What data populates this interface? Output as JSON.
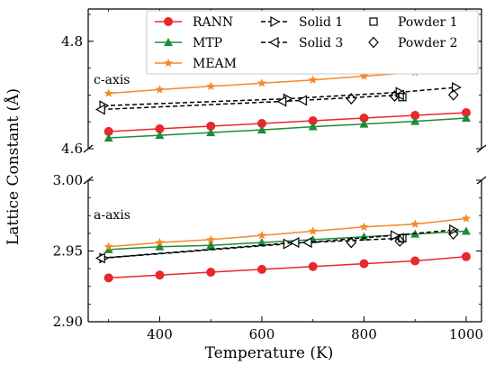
{
  "chart_data": {
    "type": "line",
    "xlabel": "Temperature (K)",
    "ylabel": "Lattice Constant (Å)",
    "xlim": [
      260,
      1030
    ],
    "x_ticks": [
      400,
      600,
      800,
      1000
    ],
    "legend_placement": "top",
    "legend_columns": 3,
    "panels": [
      {
        "id": "c-axis",
        "annotation": "c-axis",
        "ylim": [
          4.6,
          4.86
        ],
        "y_ticks": [
          4.6,
          4.8
        ],
        "y_tick_labels": [
          "4.6",
          "4.8"
        ],
        "series": [
          {
            "name": "RANN",
            "style": "line-circle",
            "color": "#e8282b",
            "x": [
              300,
              400,
              500,
              600,
              700,
              800,
              900,
              1000
            ],
            "y": [
              4.632,
              4.637,
              4.642,
              4.647,
              4.652,
              4.657,
              4.662,
              4.667
            ]
          },
          {
            "name": "MTP",
            "style": "line-triangle-up",
            "color": "#1e8b3a",
            "x": [
              300,
              400,
              500,
              600,
              700,
              800,
              900,
              1000
            ],
            "y": [
              4.62,
              4.625,
              4.63,
              4.635,
              4.641,
              4.646,
              4.651,
              4.657
            ]
          },
          {
            "name": "MEAM",
            "style": "line-star",
            "color": "#f5892a",
            "x": [
              300,
              400,
              500,
              600,
              700,
              800,
              900,
              1000
            ],
            "y": [
              4.703,
              4.71,
              4.716,
              4.722,
              4.728,
              4.735,
              4.742,
              4.75
            ]
          },
          {
            "name": "Solid 1",
            "style": "dashed-triangle-right",
            "color": "#000000",
            "x": [
              290,
              650,
              870,
              980
            ],
            "y": [
              4.68,
              4.693,
              4.705,
              4.714
            ]
          },
          {
            "name": "Solid 3",
            "style": "dashed-triangle-left",
            "color": "#000000",
            "x": [
              285,
              640,
              680,
              870
            ],
            "y": [
              4.673,
              4.688,
              4.69,
              4.7
            ]
          },
          {
            "name": "Powder 1",
            "style": "square",
            "color": "#000000",
            "x": [
              875
            ],
            "y": [
              4.696
            ]
          },
          {
            "name": "Powder 2",
            "style": "diamond",
            "color": "#000000",
            "x": [
              775,
              860,
              975
            ],
            "y": [
              4.693,
              4.698,
              4.7
            ]
          }
        ]
      },
      {
        "id": "a-axis",
        "annotation": "a-axis",
        "ylim": [
          2.9,
          3.0
        ],
        "y_ticks": [
          2.9,
          2.95,
          3.0
        ],
        "y_tick_labels": [
          "2.90",
          "2.95",
          "3.00"
        ],
        "series": [
          {
            "name": "RANN",
            "style": "line-circle",
            "color": "#e8282b",
            "x": [
              300,
              400,
              500,
              600,
              700,
              800,
              900,
              1000
            ],
            "y": [
              2.931,
              2.933,
              2.935,
              2.937,
              2.939,
              2.941,
              2.943,
              2.946
            ]
          },
          {
            "name": "MTP",
            "style": "line-triangle-up",
            "color": "#1e8b3a",
            "x": [
              300,
              400,
              500,
              600,
              700,
              800,
              900,
              1000
            ],
            "y": [
              2.951,
              2.953,
              2.954,
              2.956,
              2.958,
              2.96,
              2.962,
              2.964
            ]
          },
          {
            "name": "MEAM",
            "style": "line-star",
            "color": "#f5892a",
            "x": [
              300,
              400,
              500,
              600,
              700,
              800,
              900,
              1000
            ],
            "y": [
              2.953,
              2.956,
              2.958,
              2.961,
              2.964,
              2.967,
              2.969,
              2.973
            ]
          },
          {
            "name": "Solid 1",
            "style": "dashed-triangle-right",
            "color": "#000000",
            "x": [
              290,
              650,
              860,
              975
            ],
            "y": [
              2.945,
              2.955,
              2.961,
              2.965
            ]
          },
          {
            "name": "Solid 3",
            "style": "dashed-triangle-left",
            "color": "#000000",
            "x": [
              285,
              665,
              690,
              870
            ],
            "y": [
              2.945,
              2.956,
              2.956,
              2.959
            ]
          },
          {
            "name": "Powder 1",
            "style": "square",
            "color": "#000000",
            "x": [
              875
            ],
            "y": [
              2.959
            ]
          },
          {
            "name": "Powder 2",
            "style": "diamond",
            "color": "#000000",
            "x": [
              775,
              870,
              975
            ],
            "y": [
              2.956,
              2.957,
              2.962
            ]
          }
        ]
      }
    ]
  }
}
